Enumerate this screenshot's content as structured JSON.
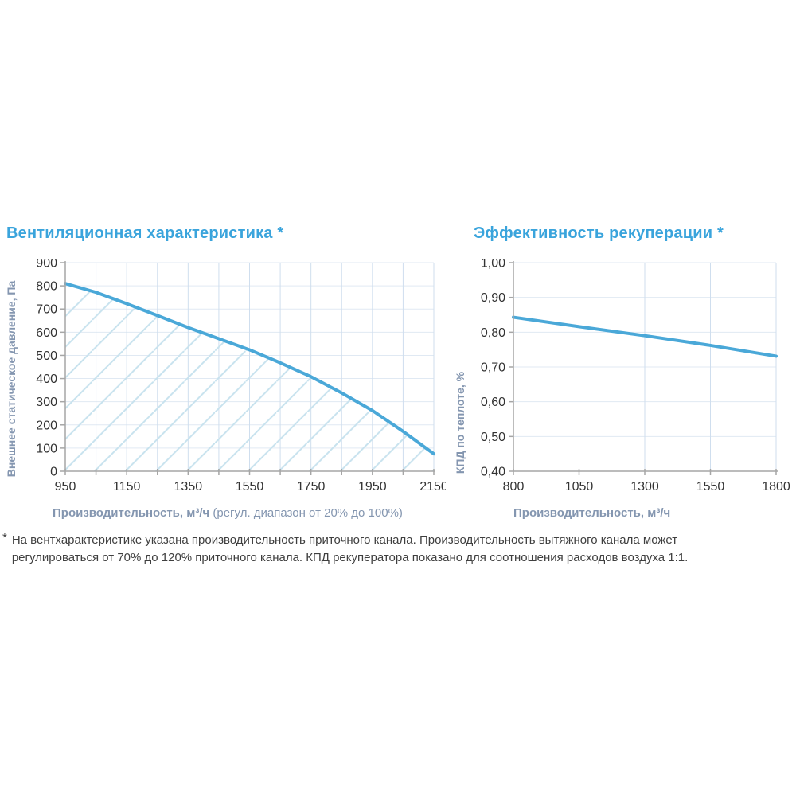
{
  "colors": {
    "title_blue": "#3AA4DC",
    "line_blue": "#4AA8D8",
    "axis_label_blue_gray": "#8496B0",
    "tick_label": "#333333",
    "grid_horizontal": "#E0E9F3",
    "grid_vertical": "#CFDEEE",
    "hatch": "#C7E2EE",
    "axis_line": "#A6A6A6",
    "footnote_text": "#3F3F3F"
  },
  "footnote": {
    "marker": "*",
    "line1": "На вентхарактеристике указана производительность приточного канала. Производительность вытяжного канала может",
    "line2": "регулироваться от 70% до 120% приточного канала. КПД рекуператора показано для соотношения расходов воздуха 1:1."
  },
  "chart_data": [
    {
      "type": "line",
      "title": "Вентиляционная характеристика *",
      "xlabel": "Производительность, м³/ч",
      "xlabel_note": " (регул. диапазон от 20% до 100%)",
      "ylabel": "Внешнее статическое давление, Па",
      "xlim": [
        950,
        2150
      ],
      "ylim": [
        0,
        900
      ],
      "x_tick_values": [
        950,
        1150,
        1350,
        1550,
        1750,
        1950,
        2150
      ],
      "x_tick_labels": [
        "950",
        "1150",
        "1350",
        "1550",
        "1750",
        "1950",
        "2150"
      ],
      "x_minor_step": 100,
      "y_tick_values": [
        0,
        100,
        200,
        300,
        400,
        500,
        600,
        700,
        800,
        900
      ],
      "y_tick_labels": [
        "0",
        "100",
        "200",
        "300",
        "400",
        "500",
        "600",
        "700",
        "800",
        "900"
      ],
      "grid": true,
      "legend": "none",
      "hatch_under_curve": true,
      "series": [
        {
          "name": "внешнее статическое давление",
          "x": [
            950,
            1050,
            1150,
            1250,
            1350,
            1450,
            1550,
            1650,
            1750,
            1850,
            1950,
            2050,
            2150
          ],
          "y": [
            810,
            772,
            723,
            672,
            620,
            572,
            524,
            468,
            408,
            338,
            262,
            172,
            75
          ]
        }
      ]
    },
    {
      "type": "line",
      "title": "Эффективность рекуперации *",
      "xlabel": "Производительность, м³/ч",
      "xlabel_note": "",
      "ylabel": "КПД по теплоте, %",
      "xlim": [
        800,
        1800
      ],
      "ylim": [
        0.4,
        1.0
      ],
      "x_tick_values": [
        800,
        1050,
        1300,
        1550,
        1800
      ],
      "x_tick_labels": [
        "800",
        "1050",
        "1300",
        "1550",
        "1800"
      ],
      "x_minor_step": 250,
      "y_tick_values": [
        0.4,
        0.5,
        0.6,
        0.7,
        0.8,
        0.9,
        1.0
      ],
      "y_tick_labels": [
        "0,40",
        "0,50",
        "0,60",
        "0,70",
        "0,80",
        "0,90",
        "1,00"
      ],
      "grid": true,
      "legend": "none",
      "hatch_under_curve": false,
      "series": [
        {
          "name": "КПД рекуператора",
          "x": [
            800,
            1050,
            1300,
            1550,
            1800
          ],
          "y": [
            0.843,
            0.816,
            0.79,
            0.762,
            0.731
          ]
        }
      ]
    }
  ]
}
